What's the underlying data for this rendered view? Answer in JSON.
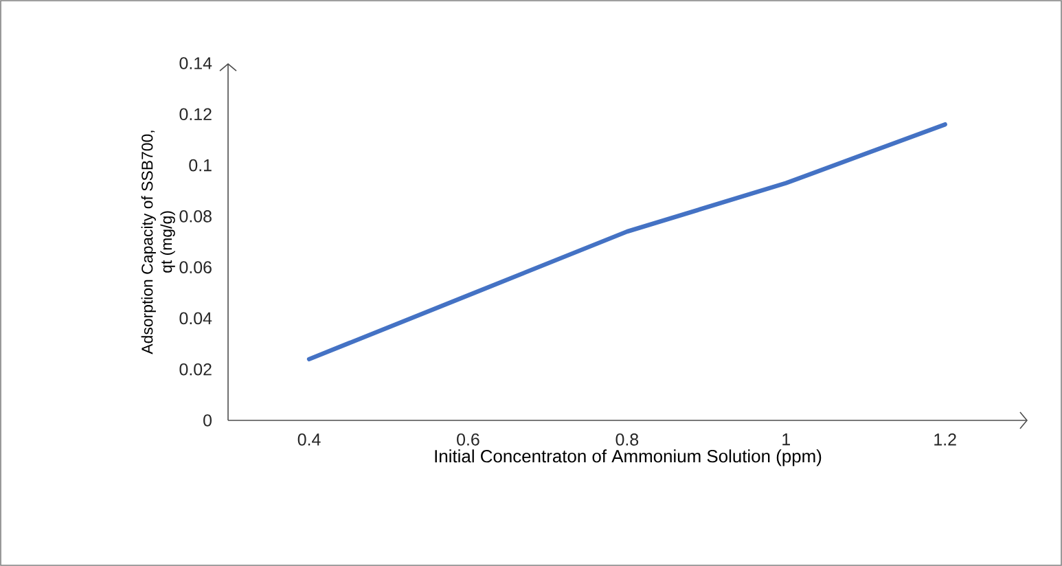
{
  "chart_data": {
    "type": "line",
    "categories": [
      "0.4",
      "0.6",
      "0.8",
      "1",
      "1.2"
    ],
    "values": [
      0.024,
      0.049,
      0.074,
      0.093,
      0.116
    ],
    "color": "#4472c4",
    "ylim": [
      0,
      0.14
    ],
    "yticks": [
      0,
      0.02,
      0.04,
      0.06,
      0.08,
      0.1,
      0.12,
      0.14
    ],
    "xlabel": "Initial Concentraton of Ammonium Solution (ppm)",
    "ylabel": "Adsorption Capacity of SSB700, qt (mg/g)",
    "marker": "none",
    "line_style": "solid"
  }
}
